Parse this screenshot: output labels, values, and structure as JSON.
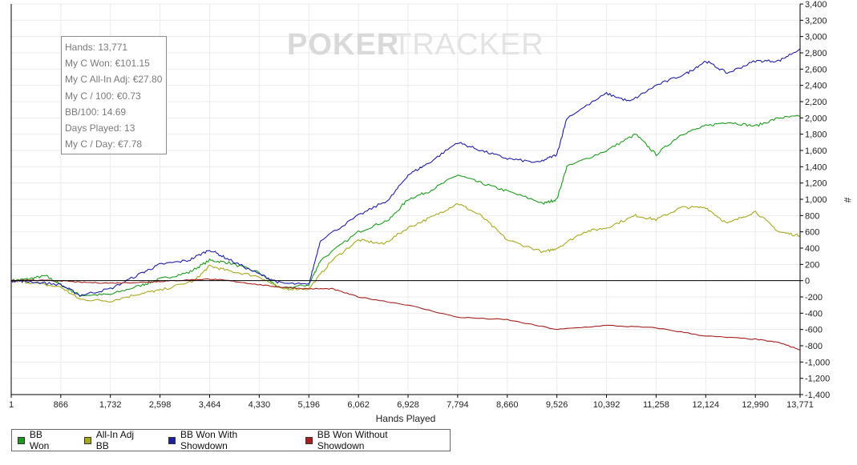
{
  "watermark": {
    "part1": "POKER",
    "part2": "TRACKER"
  },
  "stats_box": {
    "lines": [
      "Hands: 13,771",
      "My C Won: €101.15",
      "My C All-In Adj: €27.80",
      "My C / 100: €0.73",
      "BB/100: 14.69",
      "Days Played: 13",
      "My C / Day: €7.78"
    ]
  },
  "chart_data": {
    "type": "line",
    "xlabel": "Hands Played",
    "ylabel": "#",
    "xlim": [
      1,
      13771
    ],
    "ylim": [
      -1400,
      3400
    ],
    "x_ticks": [
      1,
      866,
      1732,
      2598,
      3464,
      4330,
      5196,
      6062,
      6928,
      7794,
      8660,
      9526,
      10392,
      11258,
      12124,
      12990,
      13771
    ],
    "x_tick_labels": [
      "1",
      "866",
      "1,732",
      "2,598",
      "3,464",
      "4,330",
      "5,196",
      "6,062",
      "6,928",
      "7,794",
      "8,660",
      "9,526",
      "10,392",
      "11,258",
      "12,124",
      "12,990",
      "13,771"
    ],
    "y_ticks": [
      -1400,
      -1200,
      -1000,
      -800,
      -600,
      -400,
      -200,
      0,
      200,
      400,
      600,
      800,
      1000,
      1200,
      1400,
      1600,
      1800,
      2000,
      2200,
      2400,
      2600,
      2800,
      3000,
      3200,
      3400
    ],
    "y_tick_labels": [
      "-1,400",
      "-1,200",
      "-1,000",
      "-800",
      "-600",
      "-400",
      "-200",
      "0",
      "200",
      "400",
      "600",
      "800",
      "1,000",
      "1,200",
      "1,400",
      "1,600",
      "1,800",
      "2,000",
      "2,200",
      "2,400",
      "2,600",
      "2,800",
      "3,000",
      "3,200",
      "3,400"
    ],
    "grid": true,
    "legend_position": "bottom-left",
    "series": [
      {
        "name": "BB Won",
        "color": "#1f9a1f",
        "points": [
          [
            1,
            0
          ],
          [
            300,
            20
          ],
          [
            600,
            60
          ],
          [
            866,
            -50
          ],
          [
            1200,
            -180
          ],
          [
            1732,
            -170
          ],
          [
            2300,
            -50
          ],
          [
            2598,
            20
          ],
          [
            3100,
            100
          ],
          [
            3464,
            250
          ],
          [
            3800,
            220
          ],
          [
            4330,
            100
          ],
          [
            4700,
            -100
          ],
          [
            5196,
            -50
          ],
          [
            5400,
            250
          ],
          [
            6062,
            600
          ],
          [
            6600,
            750
          ],
          [
            6928,
            1000
          ],
          [
            7300,
            1100
          ],
          [
            7794,
            1300
          ],
          [
            8200,
            1200
          ],
          [
            8660,
            1100
          ],
          [
            9300,
            950
          ],
          [
            9526,
            1000
          ],
          [
            9700,
            1400
          ],
          [
            10392,
            1600
          ],
          [
            10900,
            1800
          ],
          [
            11258,
            1550
          ],
          [
            11700,
            1800
          ],
          [
            12124,
            1900
          ],
          [
            12500,
            1950
          ],
          [
            12990,
            1900
          ],
          [
            13400,
            2000
          ],
          [
            13771,
            2020
          ]
        ]
      },
      {
        "name": "All-In Adj BB",
        "color": "#a8a820",
        "points": [
          [
            1,
            0
          ],
          [
            300,
            -20
          ],
          [
            866,
            -80
          ],
          [
            1200,
            -230
          ],
          [
            1732,
            -250
          ],
          [
            2300,
            -150
          ],
          [
            2598,
            -120
          ],
          [
            3200,
            0
          ],
          [
            3464,
            180
          ],
          [
            3800,
            120
          ],
          [
            4330,
            50
          ],
          [
            4700,
            -100
          ],
          [
            5196,
            -100
          ],
          [
            5600,
            250
          ],
          [
            6062,
            500
          ],
          [
            6500,
            450
          ],
          [
            6928,
            650
          ],
          [
            7400,
            800
          ],
          [
            7794,
            950
          ],
          [
            8200,
            800
          ],
          [
            8660,
            500
          ],
          [
            9300,
            350
          ],
          [
            9526,
            400
          ],
          [
            10000,
            600
          ],
          [
            10392,
            650
          ],
          [
            10900,
            800
          ],
          [
            11258,
            750
          ],
          [
            11700,
            900
          ],
          [
            12124,
            900
          ],
          [
            12500,
            700
          ],
          [
            12990,
            850
          ],
          [
            13400,
            600
          ],
          [
            13771,
            550
          ]
        ]
      },
      {
        "name": "BB Won With Showdown",
        "color": "#1f1fa5",
        "points": [
          [
            1,
            0
          ],
          [
            300,
            -10
          ],
          [
            866,
            -50
          ],
          [
            1200,
            -180
          ],
          [
            1732,
            -100
          ],
          [
            2300,
            100
          ],
          [
            2598,
            200
          ],
          [
            3100,
            250
          ],
          [
            3464,
            380
          ],
          [
            3800,
            260
          ],
          [
            4330,
            80
          ],
          [
            4700,
            -30
          ],
          [
            5196,
            -50
          ],
          [
            5400,
            500
          ],
          [
            6062,
            800
          ],
          [
            6600,
            1000
          ],
          [
            6928,
            1300
          ],
          [
            7300,
            1450
          ],
          [
            7794,
            1700
          ],
          [
            8200,
            1600
          ],
          [
            8660,
            1500
          ],
          [
            9200,
            1450
          ],
          [
            9526,
            1550
          ],
          [
            9700,
            2000
          ],
          [
            10392,
            2300
          ],
          [
            10800,
            2200
          ],
          [
            11258,
            2400
          ],
          [
            11800,
            2550
          ],
          [
            12124,
            2700
          ],
          [
            12500,
            2550
          ],
          [
            12990,
            2700
          ],
          [
            13400,
            2700
          ],
          [
            13771,
            2850
          ]
        ]
      },
      {
        "name": "BB Won Without Showdown",
        "color": "#a51f1f",
        "points": [
          [
            1,
            0
          ],
          [
            300,
            5
          ],
          [
            866,
            0
          ],
          [
            1200,
            -20
          ],
          [
            1732,
            -30
          ],
          [
            2300,
            -20
          ],
          [
            2598,
            -10
          ],
          [
            3100,
            10
          ],
          [
            3464,
            20
          ],
          [
            3800,
            0
          ],
          [
            4330,
            -50
          ],
          [
            4700,
            -80
          ],
          [
            5196,
            -100
          ],
          [
            5600,
            -100
          ],
          [
            6062,
            -200
          ],
          [
            6928,
            -300
          ],
          [
            7794,
            -450
          ],
          [
            8660,
            -480
          ],
          [
            9526,
            -600
          ],
          [
            10392,
            -550
          ],
          [
            11258,
            -580
          ],
          [
            12124,
            -680
          ],
          [
            12990,
            -720
          ],
          [
            13400,
            -760
          ],
          [
            13771,
            -850
          ]
        ]
      }
    ]
  }
}
